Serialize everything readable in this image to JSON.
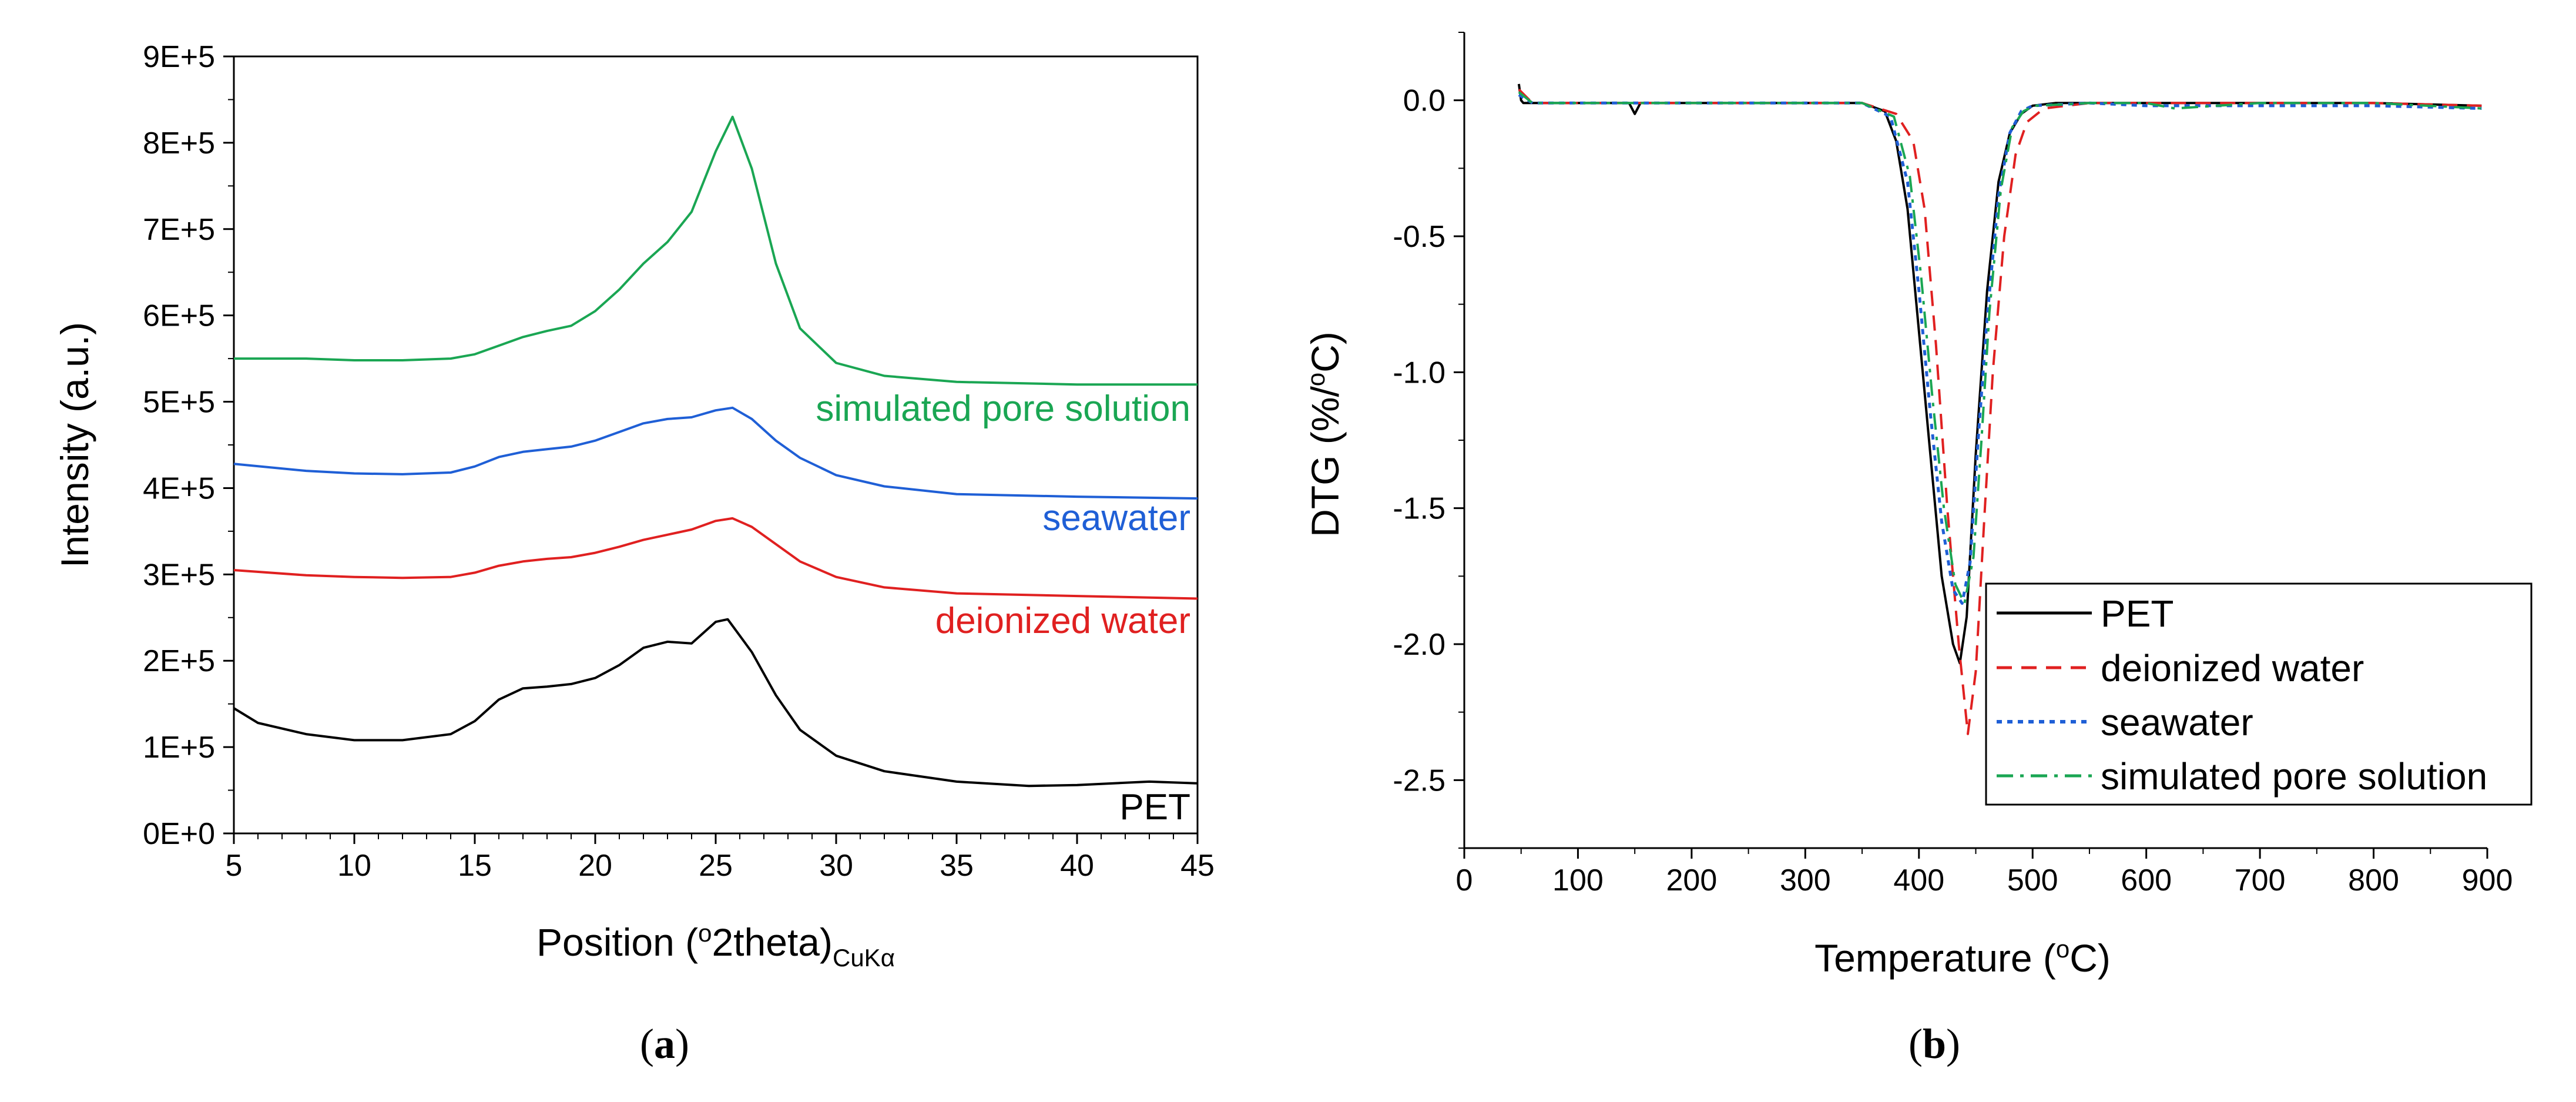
{
  "colors": {
    "PET": "#000000",
    "deionized water": "#e02020",
    "seawater": "#1f5fd6",
    "simulated pore solution": "#1aa653"
  },
  "panel_a": {
    "caption_open": "(",
    "caption_letter": "a",
    "caption_close": ")",
    "xlabel_pre": "Position (",
    "xlabel_sup": "o",
    "xlabel_mid": "2theta)",
    "xlabel_sub": "CuKα",
    "ylabel": "Intensity (a.u.)"
  },
  "panel_b": {
    "caption_open": "(",
    "caption_letter": "b",
    "caption_close": ")",
    "xlabel_pre": "Temperature (",
    "xlabel_sup": "o",
    "xlabel_post": "C)",
    "ylabel_pre": "DTG (%/",
    "ylabel_sup": "o",
    "ylabel_post": "C)"
  },
  "chart_data": [
    {
      "type": "line",
      "title": "",
      "xlim": [
        5,
        45
      ],
      "ylim": [
        0,
        900000
      ],
      "x_ticks": [
        5,
        10,
        15,
        20,
        25,
        30,
        35,
        40,
        45
      ],
      "x_tick_labels": [
        "5",
        "10",
        "15",
        "20",
        "25",
        "30",
        "35",
        "40",
        "45"
      ],
      "y_ticks": [
        0,
        100000,
        200000,
        300000,
        400000,
        500000,
        600000,
        700000,
        800000,
        900000
      ],
      "y_tick_labels": [
        "0E+0",
        "1E+5",
        "2E+5",
        "3E+5",
        "4E+5",
        "5E+5",
        "6E+5",
        "7E+5",
        "8E+5",
        "9E+5"
      ],
      "grid": false,
      "series": [
        {
          "name": "simulated pore solution",
          "x": [
            5,
            8,
            10,
            12,
            14,
            15,
            16,
            17,
            18,
            19,
            20,
            21,
            22,
            23,
            24,
            25,
            25.7,
            26.5,
            27.5,
            28.5,
            30,
            32,
            35,
            40,
            45
          ],
          "y": [
            550000,
            550000,
            548000,
            548000,
            550000,
            555000,
            565000,
            575000,
            582000,
            588000,
            605000,
            630000,
            660000,
            685000,
            720000,
            790000,
            830000,
            770000,
            660000,
            585000,
            545000,
            530000,
            523000,
            520000,
            520000
          ]
        },
        {
          "name": "seawater",
          "x": [
            5,
            8,
            10,
            12,
            14,
            15,
            16,
            17,
            18,
            19,
            20,
            21,
            22,
            23,
            24,
            25,
            25.7,
            26.5,
            27.5,
            28.5,
            30,
            32,
            35,
            40,
            45
          ],
          "y": [
            428000,
            420000,
            417000,
            416000,
            418000,
            425000,
            436000,
            442000,
            445000,
            448000,
            455000,
            465000,
            475000,
            480000,
            482000,
            490000,
            493000,
            480000,
            455000,
            435000,
            415000,
            402000,
            393000,
            390000,
            388000
          ]
        },
        {
          "name": "deionized water",
          "x": [
            5,
            8,
            10,
            12,
            14,
            15,
            16,
            17,
            18,
            19,
            20,
            21,
            22,
            23,
            24,
            25,
            25.7,
            26.5,
            27.5,
            28.5,
            30,
            32,
            35,
            40,
            45
          ],
          "y": [
            305000,
            299000,
            297000,
            296000,
            297000,
            302000,
            310000,
            315000,
            318000,
            320000,
            325000,
            332000,
            340000,
            346000,
            352000,
            362000,
            365000,
            355000,
            335000,
            315000,
            297000,
            285000,
            278000,
            275000,
            272000
          ]
        },
        {
          "name": "PET",
          "x": [
            5,
            6,
            8,
            10,
            12,
            14,
            15,
            16,
            17,
            18,
            19,
            20,
            21,
            22,
            23,
            24,
            25,
            25.5,
            26.5,
            27.5,
            28.5,
            30,
            32,
            35,
            38,
            40,
            43,
            45
          ],
          "y": [
            145000,
            128000,
            115000,
            108000,
            108000,
            115000,
            130000,
            155000,
            168000,
            170000,
            173000,
            180000,
            195000,
            215000,
            222000,
            220000,
            245000,
            248000,
            210000,
            160000,
            120000,
            90000,
            72000,
            60000,
            55000,
            56000,
            60000,
            58000
          ]
        }
      ],
      "annotations": [
        "simulated pore solution",
        "seawater",
        "deionized water",
        "PET"
      ]
    },
    {
      "type": "line",
      "title": "",
      "xlim": [
        0,
        900
      ],
      "ylim": [
        -2.75,
        0.25
      ],
      "x_ticks": [
        0,
        100,
        200,
        300,
        400,
        500,
        600,
        700,
        800,
        900
      ],
      "x_tick_labels": [
        "0",
        "100",
        "200",
        "300",
        "400",
        "500",
        "600",
        "700",
        "800",
        "900"
      ],
      "y_ticks": [
        0,
        -0.5,
        -1.0,
        -1.5,
        -2.0,
        -2.5
      ],
      "y_tick_labels": [
        "0.0",
        "-0.5",
        "-1.0",
        "-1.5",
        "-2.0",
        "-2.5"
      ],
      "grid": false,
      "legend": "bottom-right",
      "series": [
        {
          "name": "PET",
          "style": "solid",
          "x": [
            48,
            50,
            52,
            60,
            100,
            145,
            150,
            155,
            200,
            300,
            350,
            370,
            380,
            390,
            400,
            410,
            420,
            430,
            436,
            442,
            450,
            460,
            470,
            480,
            490,
            500,
            520,
            550,
            600,
            700,
            800,
            895
          ],
          "y": [
            0.06,
            0.0,
            -0.01,
            -0.01,
            -0.01,
            -0.01,
            -0.05,
            -0.01,
            -0.01,
            -0.01,
            -0.01,
            -0.04,
            -0.15,
            -0.4,
            -0.85,
            -1.3,
            -1.75,
            -2.0,
            -2.07,
            -1.9,
            -1.3,
            -0.7,
            -0.3,
            -0.12,
            -0.05,
            -0.02,
            -0.01,
            -0.01,
            -0.01,
            -0.01,
            -0.01,
            -0.02
          ]
        },
        {
          "name": "deionized water",
          "style": "dashed",
          "x": [
            48,
            60,
            100,
            200,
            300,
            350,
            380,
            395,
            405,
            415,
            425,
            435,
            443,
            450,
            458,
            465,
            475,
            485,
            495,
            510,
            550,
            600,
            700,
            800,
            895
          ],
          "y": [
            0.04,
            -0.01,
            -0.01,
            -0.01,
            -0.01,
            -0.01,
            -0.05,
            -0.15,
            -0.4,
            -0.9,
            -1.5,
            -2.0,
            -2.33,
            -2.1,
            -1.5,
            -1.0,
            -0.5,
            -0.2,
            -0.08,
            -0.03,
            -0.01,
            -0.01,
            -0.01,
            -0.01,
            -0.02
          ]
        },
        {
          "name": "seawater",
          "style": "dotted",
          "x": [
            48,
            60,
            100,
            200,
            300,
            350,
            375,
            390,
            400,
            410,
            420,
            430,
            438,
            445,
            452,
            460,
            470,
            480,
            490,
            500,
            550,
            600,
            700,
            800,
            895
          ],
          "y": [
            0.02,
            -0.01,
            -0.01,
            -0.01,
            -0.01,
            -0.01,
            -0.06,
            -0.3,
            -0.7,
            -1.15,
            -1.55,
            -1.8,
            -1.85,
            -1.7,
            -1.25,
            -0.8,
            -0.35,
            -0.12,
            -0.04,
            -0.02,
            -0.01,
            -0.02,
            -0.02,
            -0.02,
            -0.03
          ]
        },
        {
          "name": "simulated pore solution",
          "style": "dashdot",
          "x": [
            48,
            60,
            100,
            200,
            300,
            350,
            378,
            392,
            402,
            412,
            422,
            432,
            440,
            448,
            455,
            462,
            472,
            482,
            492,
            502,
            550,
            600,
            625,
            700,
            800,
            895
          ],
          "y": [
            0.03,
            -0.01,
            -0.01,
            -0.01,
            -0.01,
            -0.01,
            -0.06,
            -0.28,
            -0.65,
            -1.1,
            -1.5,
            -1.78,
            -1.85,
            -1.68,
            -1.25,
            -0.78,
            -0.33,
            -0.1,
            -0.04,
            -0.02,
            -0.01,
            -0.01,
            -0.03,
            -0.01,
            -0.01,
            -0.03
          ]
        }
      ]
    }
  ]
}
